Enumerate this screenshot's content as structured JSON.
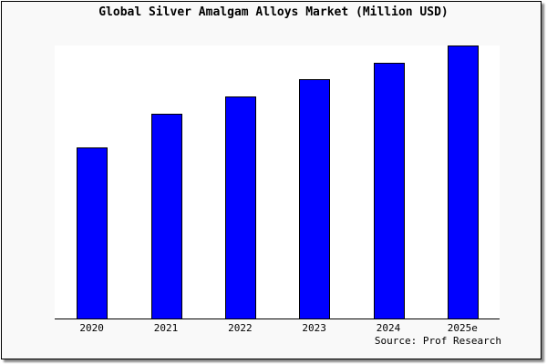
{
  "chart_data": {
    "type": "bar",
    "title": "Global Silver Amalgam Alloys Market (Million USD)",
    "categories": [
      "2020",
      "2021",
      "2022",
      "2023",
      "2024",
      "2025e"
    ],
    "values": [
      62.7,
      75.0,
      81.3,
      87.7,
      93.7,
      100
    ],
    "value_note": "relative bar heights; no y-axis values printed",
    "ylim": [
      0,
      100
    ],
    "xlabel": "",
    "ylabel": "",
    "grid": false,
    "bar_color": "#0000ff",
    "source": "Source: Prof Research"
  }
}
